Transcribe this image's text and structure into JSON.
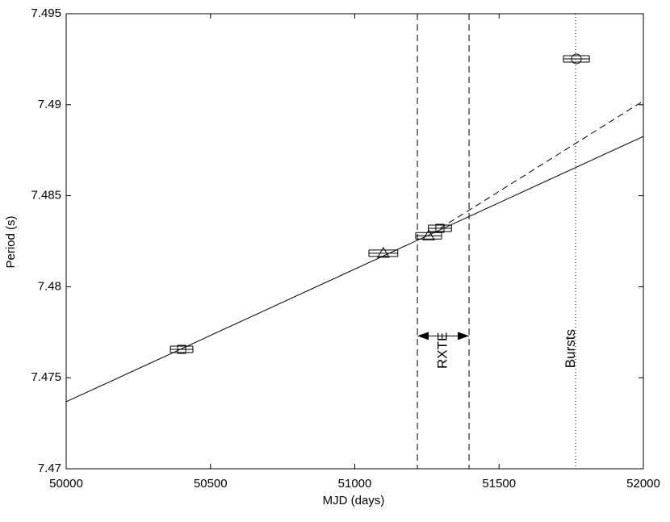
{
  "chart_data": {
    "type": "scatter",
    "xlabel": "MJD (days)",
    "ylabel": "Period (s)",
    "xlim": [
      50000,
      52000
    ],
    "ylim": [
      7.47,
      7.495
    ],
    "xticks": [
      50000,
      50500,
      51000,
      51500,
      52000
    ],
    "yticks": [
      7.47,
      7.475,
      7.48,
      7.485,
      7.49,
      7.495
    ],
    "color": "#000000",
    "series": [
      {
        "marker": "square",
        "x": [
          50400,
          51295
        ],
        "values": [
          7.47656,
          7.48321
        ],
        "xerr": [
          39,
          40
        ]
      },
      {
        "marker": "triangle",
        "x": [
          51099,
          51256
        ],
        "values": [
          7.48184,
          7.4828
        ],
        "xerr": [
          50,
          45
        ]
      },
      {
        "marker": "circle",
        "x": [
          51768
        ],
        "values": [
          7.49252
        ],
        "xerr": [
          45
        ]
      }
    ],
    "fits": [
      {
        "style": "solid",
        "x": [
          50000,
          52000
        ],
        "values": [
          7.47368,
          7.48826
        ]
      },
      {
        "style": "dashed",
        "x": [
          51295,
          52000
        ],
        "values": [
          7.4832,
          7.49021
        ]
      }
    ],
    "vlines": [
      {
        "style": "dashed",
        "x": 51217
      },
      {
        "style": "dashed",
        "x": 51396
      },
      {
        "style": "dotted",
        "x": 51765
      }
    ],
    "annotations": [
      {
        "text": "RXTE",
        "x": 51306,
        "y": 7.4765,
        "arrows": [
          51217,
          51396
        ]
      },
      {
        "text": "Bursts",
        "x": 51750,
        "y": 7.4766
      }
    ]
  }
}
